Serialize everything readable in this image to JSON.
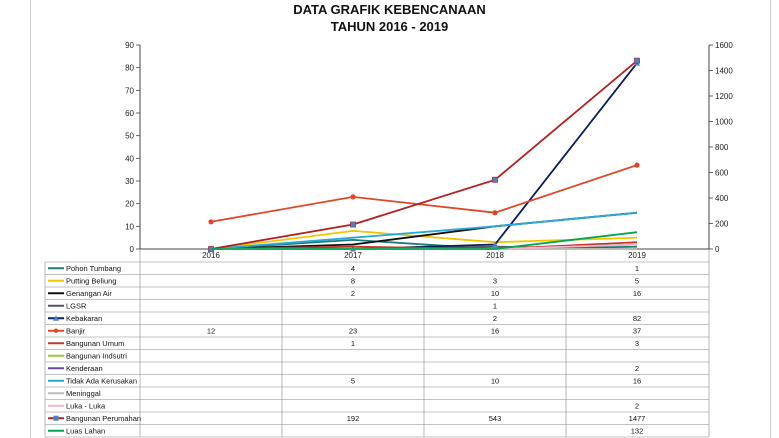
{
  "chart_data": {
    "type": "line",
    "title": "DATA GRAFIK KEBENCANAAN",
    "subtitle": "TAHUN 2016 - 2019",
    "categories": [
      "2016",
      "2017",
      "2018",
      "2019"
    ],
    "y_left": {
      "min": 0,
      "max": 90,
      "ticks": [
        "0",
        "10",
        "20",
        "30",
        "40",
        "50",
        "60",
        "70",
        "80",
        "90"
      ]
    },
    "y_right": {
      "min": 0,
      "max": 1600,
      "ticks": [
        "0",
        "200",
        "400",
        "600",
        "800",
        "1000",
        "1200",
        "1400",
        "1600"
      ]
    },
    "grid": false,
    "legend": "data-table-below",
    "series": [
      {
        "name": "Pohon Tumbang",
        "color": "#1f7a7a",
        "marker": "none",
        "axis": "left",
        "values": [
          0,
          4,
          0,
          1
        ],
        "labels": [
          "",
          "4",
          "",
          "1"
        ]
      },
      {
        "name": "Putting Beliung",
        "color": "#f2c500",
        "marker": "none",
        "axis": "left",
        "values": [
          0,
          8,
          3,
          5
        ],
        "labels": [
          "",
          "8",
          "3",
          "5"
        ]
      },
      {
        "name": "Genangan Air",
        "color": "#111111",
        "marker": "none",
        "axis": "left",
        "values": [
          0,
          2,
          10,
          16
        ],
        "labels": [
          "",
          "2",
          "10",
          "16"
        ]
      },
      {
        "name": "LGSR",
        "color": "#555566",
        "marker": "none",
        "axis": "left",
        "values": [
          0,
          0,
          1,
          0
        ],
        "labels": [
          "",
          "",
          "1",
          ""
        ]
      },
      {
        "name": "Kebakaran",
        "color": "#0a1f5c",
        "marker": "triangle",
        "axis": "left",
        "values": [
          0,
          0,
          2,
          82
        ],
        "labels": [
          "",
          "",
          "2",
          "82"
        ]
      },
      {
        "name": "Banjir",
        "color": "#e0462a",
        "marker": "circle",
        "axis": "left",
        "values": [
          12,
          23,
          16,
          37
        ],
        "labels": [
          "12",
          "23",
          "16",
          "37"
        ]
      },
      {
        "name": "Bangunan Umum",
        "color": "#c0392b",
        "marker": "none",
        "axis": "left",
        "values": [
          0,
          1,
          0,
          3
        ],
        "labels": [
          "",
          "1",
          "",
          "3"
        ]
      },
      {
        "name": "Bangunan Indsutri",
        "color": "#9acd32",
        "marker": "none",
        "axis": "left",
        "values": [
          0,
          0,
          0,
          0
        ],
        "labels": [
          "",
          "",
          "",
          ""
        ]
      },
      {
        "name": "Kenderaan",
        "color": "#6a4c9c",
        "marker": "none",
        "axis": "left",
        "values": [
          0,
          0,
          0,
          2
        ],
        "labels": [
          "",
          "",
          "",
          "2"
        ]
      },
      {
        "name": "Tidak Ada Kerusakan",
        "color": "#29a9d6",
        "marker": "none",
        "axis": "left",
        "values": [
          0,
          5,
          10,
          16
        ],
        "labels": [
          "",
          "5",
          "10",
          "16"
        ]
      },
      {
        "name": "Meninggal",
        "color": "#bbbbbb",
        "marker": "none",
        "axis": "left",
        "values": [
          0,
          0,
          0,
          0
        ],
        "labels": [
          "",
          "",
          "",
          ""
        ]
      },
      {
        "name": "Luka - Luka",
        "color": "#f5b7c8",
        "marker": "none",
        "axis": "left",
        "values": [
          0,
          0,
          0,
          2
        ],
        "labels": [
          "",
          "",
          "",
          "2"
        ]
      },
      {
        "name": "Bangunan Perumahan",
        "color": "#b22222",
        "marker": "square",
        "axis": "right",
        "values": [
          0,
          192,
          543,
          1477
        ],
        "labels": [
          "",
          "192",
          "543",
          "1477"
        ]
      },
      {
        "name": "Luas Lahan",
        "color": "#00a651",
        "marker": "none",
        "axis": "right",
        "values": [
          0,
          0,
          0,
          132
        ],
        "labels": [
          "",
          "",
          "",
          "132"
        ]
      }
    ]
  }
}
